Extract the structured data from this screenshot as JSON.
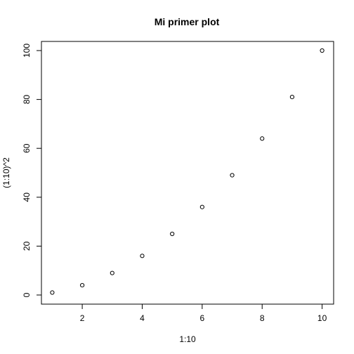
{
  "chart_data": {
    "type": "scatter",
    "title": "Mi primer plot",
    "xlabel": "1:10",
    "ylabel": "(1:10)^2",
    "x": [
      1,
      2,
      3,
      4,
      5,
      6,
      7,
      8,
      9,
      10
    ],
    "y": [
      1,
      4,
      9,
      16,
      25,
      36,
      49,
      64,
      81,
      100
    ],
    "xlim": [
      1,
      10
    ],
    "ylim": [
      0,
      100
    ],
    "xticks": [
      2,
      4,
      6,
      8,
      10
    ],
    "yticks": [
      0,
      20,
      40,
      60,
      80,
      100
    ],
    "grid": false,
    "marker": "open-circle"
  }
}
